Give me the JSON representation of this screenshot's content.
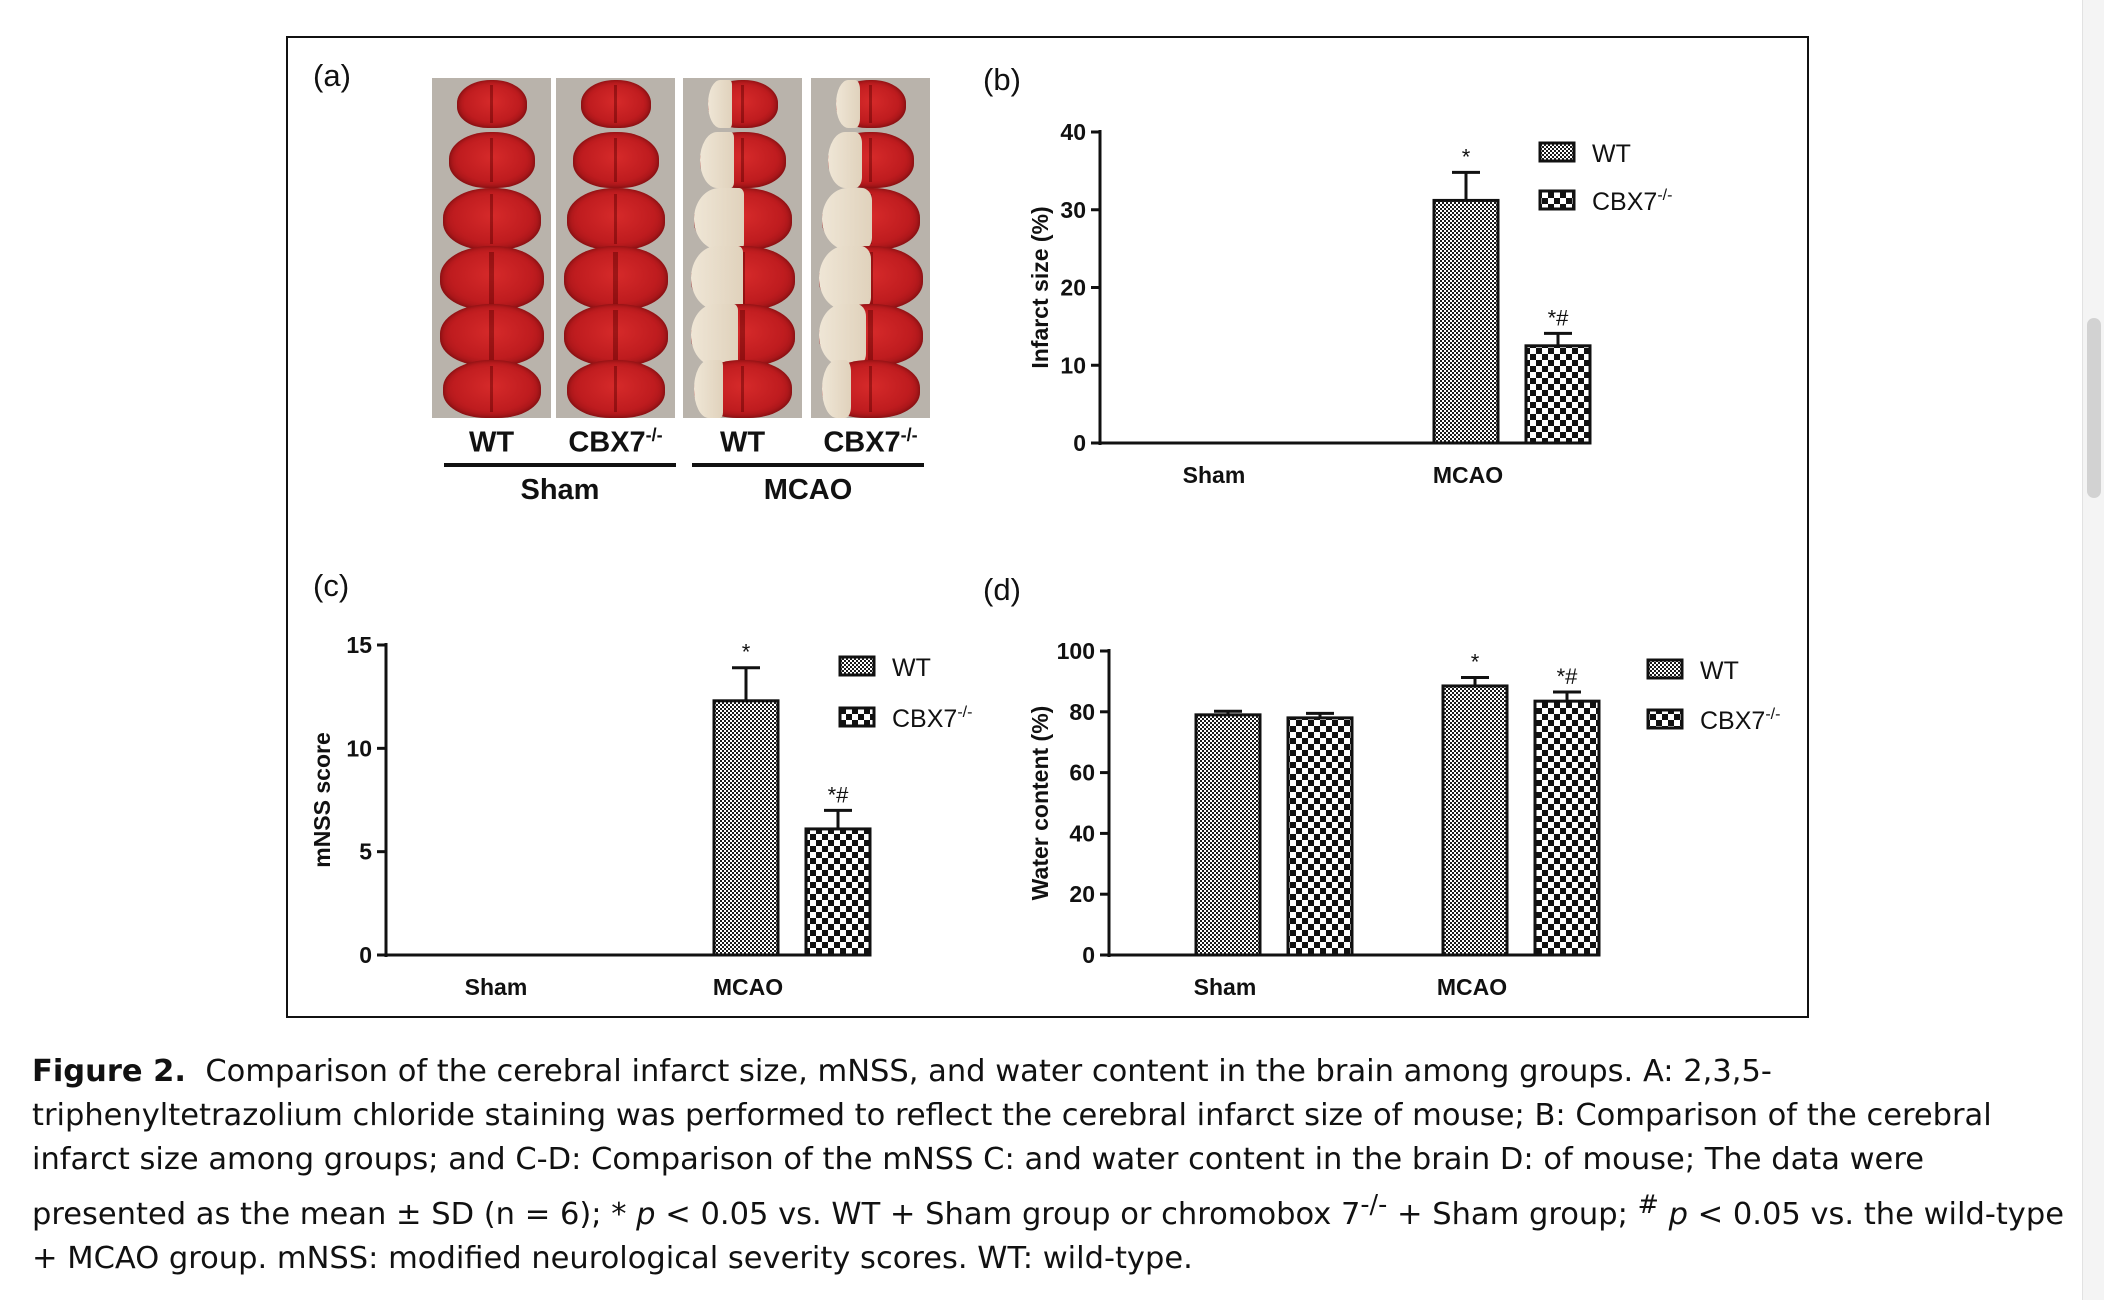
{
  "figure": {
    "panel_a": {
      "letter": "(a)",
      "columns": [
        {
          "label": "WT",
          "sup": "",
          "infarct": false
        },
        {
          "label": "CBX7",
          "sup": "-/-",
          "infarct": false
        },
        {
          "label": "WT",
          "sup": "",
          "infarct": true
        },
        {
          "label": "CBX7",
          "sup": "-/-",
          "infarct": true
        }
      ],
      "groups": [
        "Sham",
        "MCAO"
      ]
    },
    "panels": [
      {
        "id": "b",
        "letter": "(b)"
      },
      {
        "id": "c",
        "letter": "(c)"
      },
      {
        "id": "d",
        "letter": "(d)"
      }
    ]
  },
  "chart_data": [
    {
      "panel": "b",
      "type": "bar",
      "title": "",
      "xlabel": "",
      "ylabel": "Infarct size (%)",
      "ylim": [
        0,
        40
      ],
      "yticks": [
        "0",
        "10",
        "20",
        "30",
        "40"
      ],
      "categories": [
        "Sham",
        "MCAO"
      ],
      "series": [
        {
          "name": "WT",
          "sup": "",
          "pattern": "fine",
          "values": [
            0,
            31.2
          ],
          "errors": [
            0,
            3.6
          ],
          "annotations": [
            "",
            "*"
          ]
        },
        {
          "name": "CBX7",
          "sup": "-/-",
          "pattern": "checker",
          "values": [
            0,
            12.5
          ],
          "errors": [
            0,
            1.6
          ],
          "annotations": [
            "",
            "*#"
          ]
        }
      ],
      "legend": "top-right",
      "grid": false
    },
    {
      "panel": "c",
      "type": "bar",
      "title": "",
      "xlabel": "",
      "ylabel": "mNSS score",
      "ylim": [
        0,
        15
      ],
      "yticks": [
        "0",
        "5",
        "10",
        "15"
      ],
      "categories": [
        "Sham",
        "MCAO"
      ],
      "series": [
        {
          "name": "WT",
          "sup": "",
          "pattern": "fine",
          "values": [
            0,
            12.3
          ],
          "errors": [
            0,
            1.6
          ],
          "annotations": [
            "",
            "*"
          ]
        },
        {
          "name": "CBX7",
          "sup": "-/-",
          "pattern": "checker",
          "values": [
            0,
            6.1
          ],
          "errors": [
            0,
            0.9
          ],
          "annotations": [
            "",
            "*#"
          ]
        }
      ],
      "legend": "top-right",
      "grid": false
    },
    {
      "panel": "d",
      "type": "bar",
      "title": "",
      "xlabel": "",
      "ylabel": "Water content (%)",
      "ylim": [
        0,
        100
      ],
      "yticks": [
        "0",
        "20",
        "40",
        "60",
        "80",
        "100"
      ],
      "categories": [
        "Sham",
        "MCAO"
      ],
      "series": [
        {
          "name": "WT",
          "sup": "",
          "pattern": "fine",
          "values": [
            79,
            88.5
          ],
          "errors": [
            1.2,
            2.8
          ],
          "annotations": [
            "",
            "*"
          ]
        },
        {
          "name": "CBX7",
          "sup": "-/-",
          "pattern": "checker",
          "values": [
            78,
            83.5
          ],
          "errors": [
            1.5,
            3.0
          ],
          "annotations": [
            "",
            "*#"
          ]
        }
      ],
      "legend": "top-right",
      "grid": false
    }
  ],
  "caption": {
    "label": "Figure 2.",
    "text1": "Comparison of the cerebral infarct size, mNSS, and water content in the brain among groups. A: 2,3,5-triphenyltetrazolium chloride staining was performed to reflect the cerebral infarct size of mouse; B: Comparison of the cerebral infarct size among groups; and C-D: Comparison of the mNSS C: and water content in the brain D: of mouse; The data were presented as the mean ± SD (n = 6); ",
    "star": "*",
    "p1": "p",
    "text2": " < 0.05 vs. WT + Sham group or chromobox 7",
    "sup1": "-/-",
    "text3": " + Sham group; ",
    "hash": "#",
    "p2": "p",
    "text4": " < 0.05 vs. the wild-type + MCAO group. mNSS: modified neurological severity scores. WT: wild-type."
  }
}
